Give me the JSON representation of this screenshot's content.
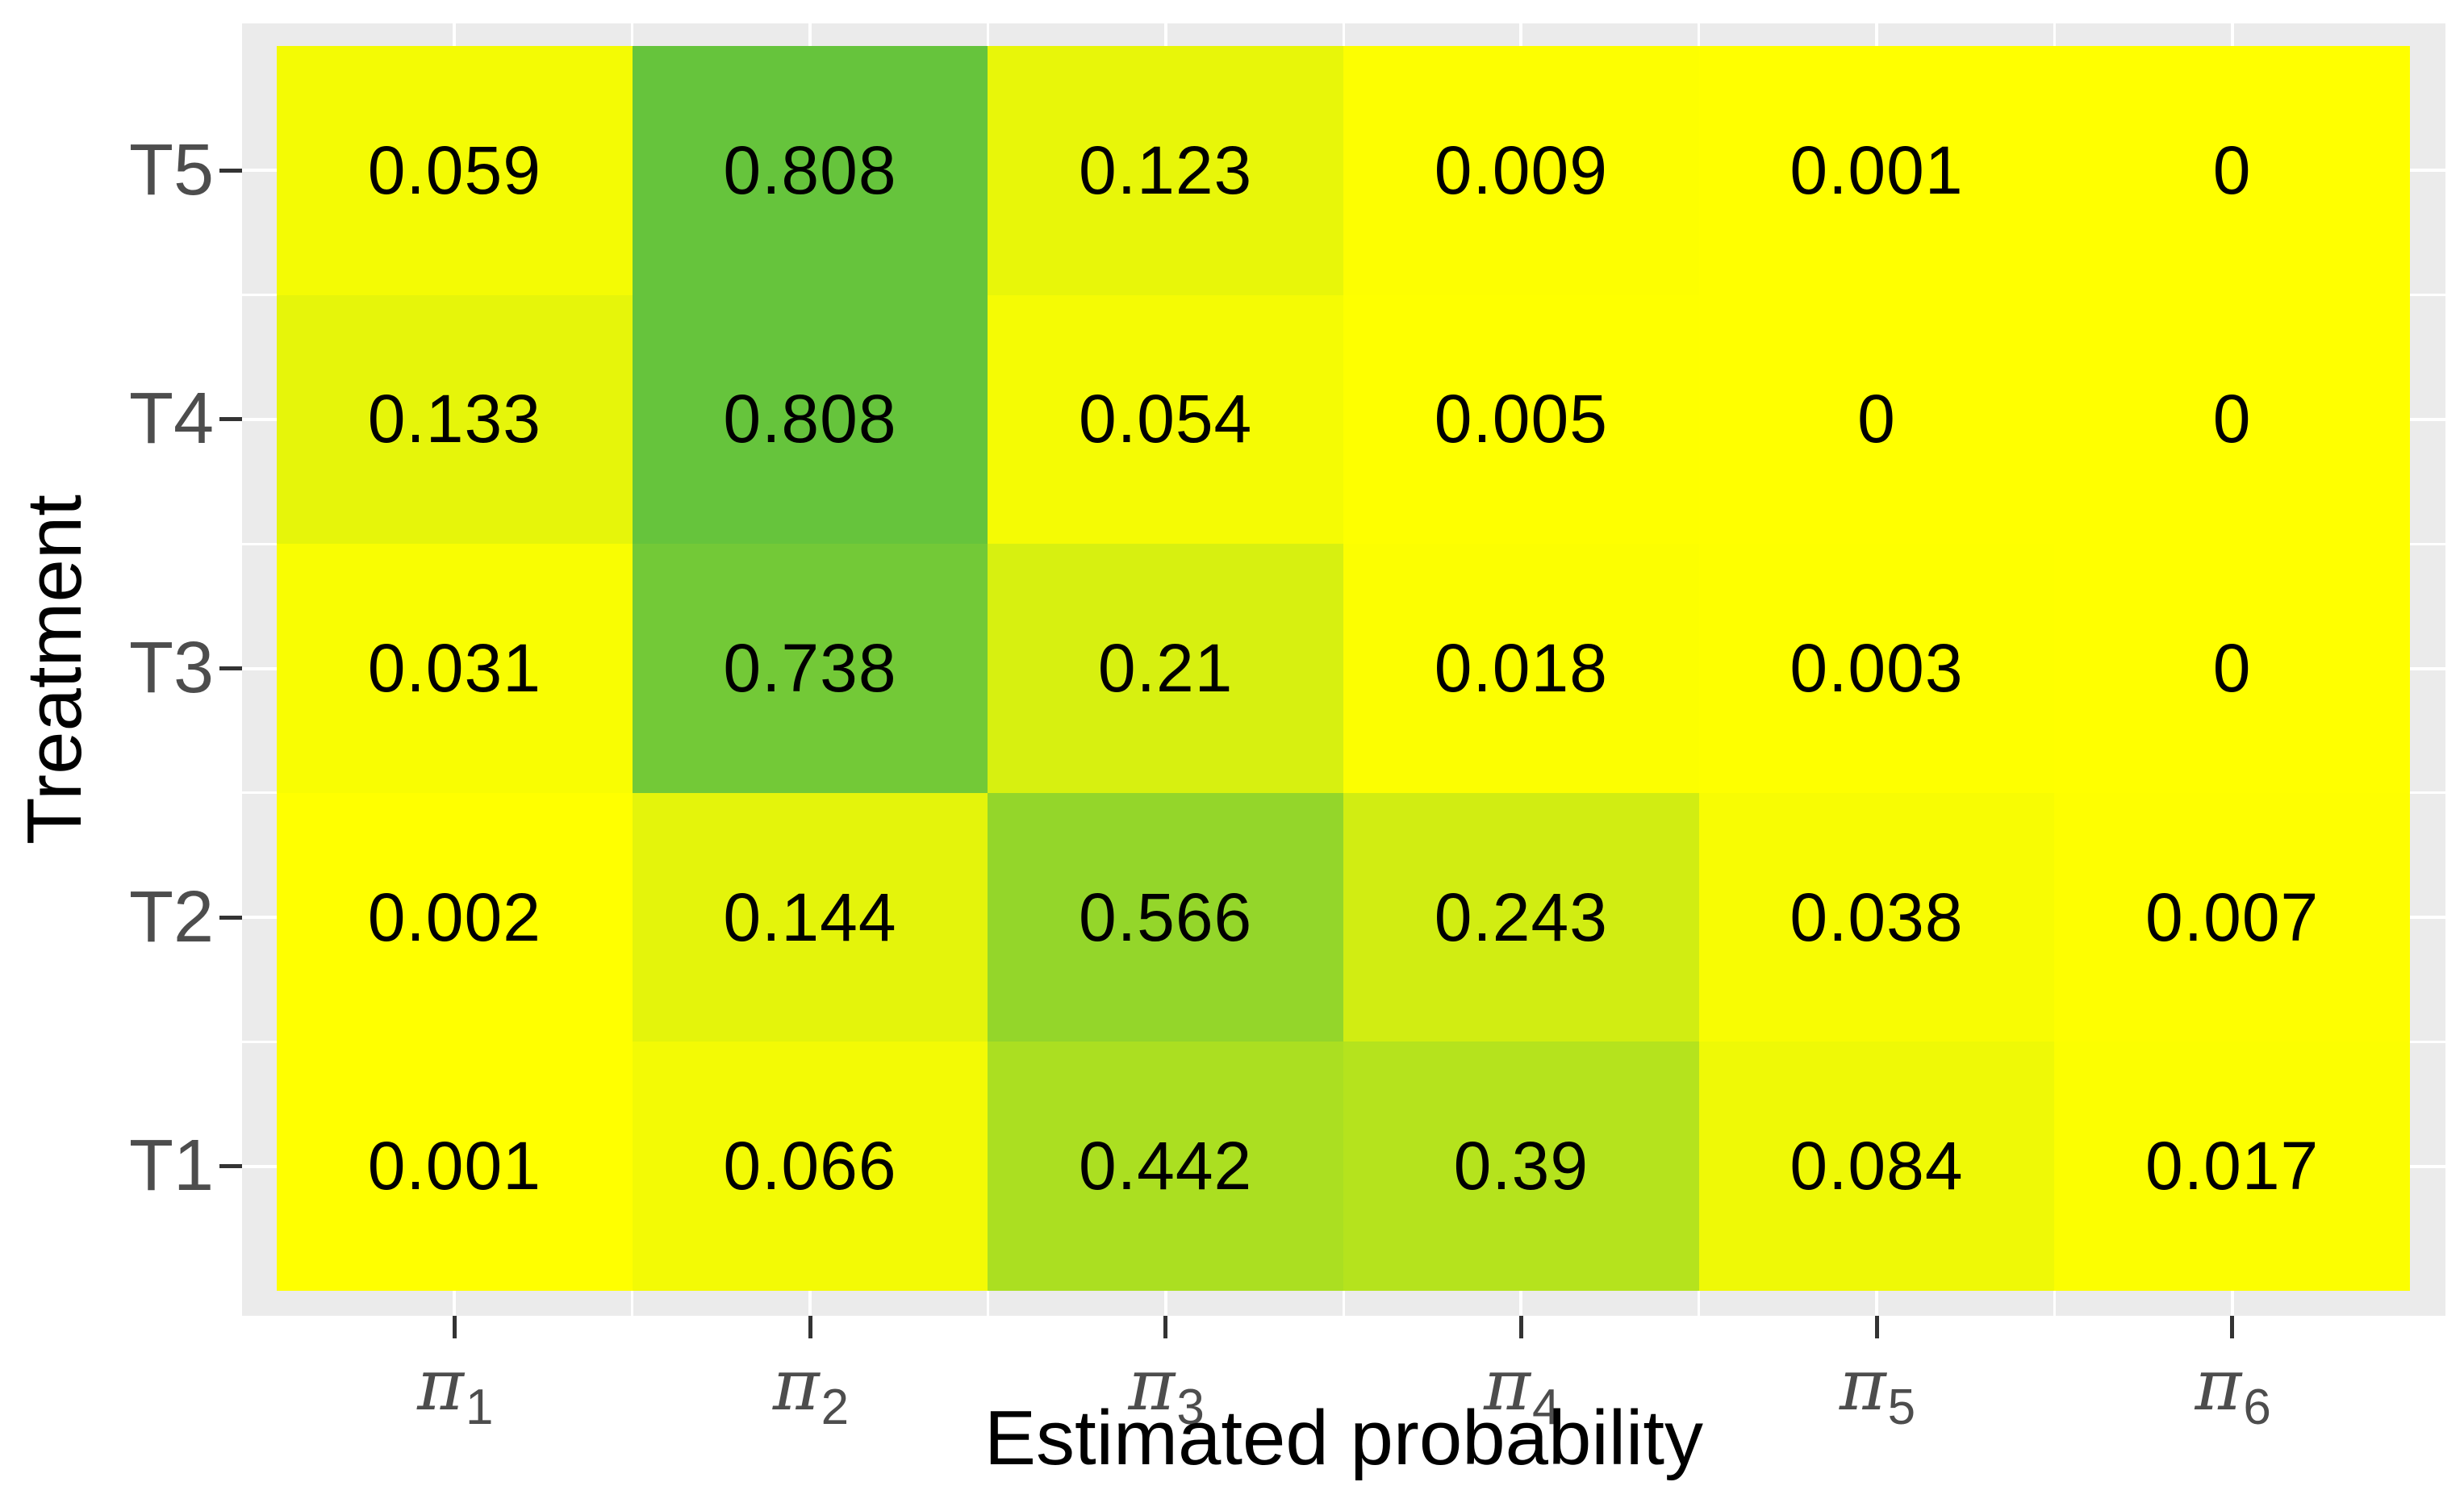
{
  "figure": {
    "x_axis_title": "Estimated probability",
    "y_axis_title": "Treatment"
  },
  "chart_data": {
    "type": "heatmap",
    "title": "",
    "xlabel": "Estimated probability",
    "ylabel": "Treatment",
    "x_categories": [
      {
        "symbol": "π",
        "sub": "1"
      },
      {
        "symbol": "π",
        "sub": "2"
      },
      {
        "symbol": "π",
        "sub": "3"
      },
      {
        "symbol": "π",
        "sub": "4"
      },
      {
        "symbol": "π",
        "sub": "5"
      },
      {
        "symbol": "π",
        "sub": "6"
      }
    ],
    "y_categories_top_to_bottom": [
      "T5",
      "T4",
      "T3",
      "T2",
      "T1"
    ],
    "rows": [
      {
        "name": "T5",
        "values": [
          0.059,
          0.808,
          0.123,
          0.009,
          0.001,
          0
        ]
      },
      {
        "name": "T4",
        "values": [
          0.133,
          0.808,
          0.054,
          0.005,
          0,
          0
        ]
      },
      {
        "name": "T3",
        "values": [
          0.031,
          0.738,
          0.21,
          0.018,
          0.003,
          0
        ]
      },
      {
        "name": "T2",
        "values": [
          0.002,
          0.144,
          0.566,
          0.243,
          0.038,
          0.007
        ]
      },
      {
        "name": "T1",
        "values": [
          0.001,
          0.066,
          0.442,
          0.39,
          0.084,
          0.017
        ]
      }
    ],
    "value_labels_shown": true,
    "color_scale": {
      "low_color": "#FFFF00",
      "high_color": "#66C43C",
      "domain": [
        0,
        0.808
      ]
    },
    "panel_background": "#EBEBEB",
    "grid_color": "#FFFFFF",
    "axis_text_color": "#4D4D4D",
    "tick_mark_color": "#333333",
    "cell_label_color": "#000000",
    "legend": "none",
    "grid": true
  }
}
